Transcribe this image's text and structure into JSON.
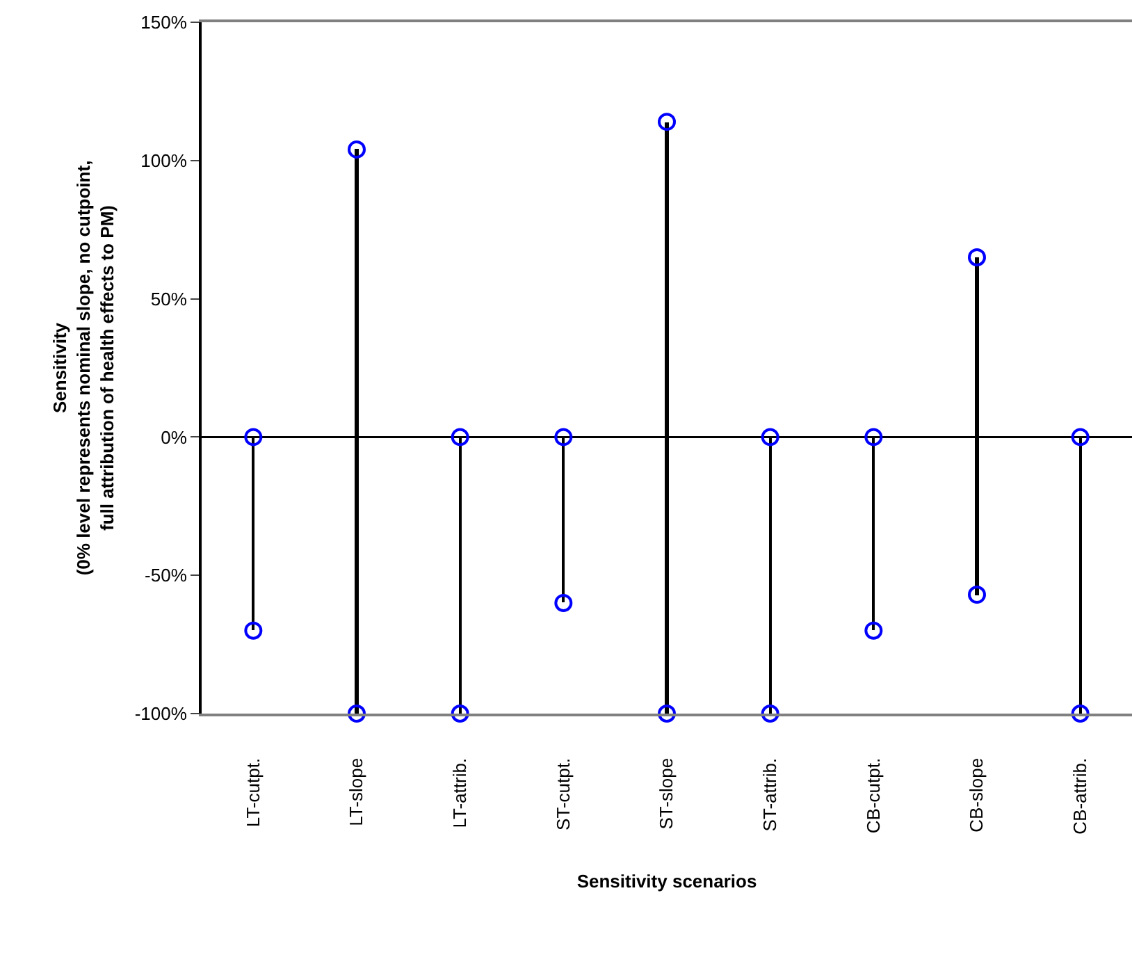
{
  "chart_data": {
    "type": "bar",
    "categories": [
      "LT-cutpt.",
      "LT-slope",
      "LT-attrib.",
      "ST-cutpt.",
      "ST-slope",
      "ST-attrib.",
      "CB-cutpt.",
      "CB-slope",
      "CB-attrib."
    ],
    "xlabel": "Sensitivity scenarios",
    "ylabel": "Sensitivity\n(0% level represents nominal slope, no cutpoint,\nfull attribution of health effects to PM)",
    "series": [
      {
        "color": "#000000",
        "base": [
          -70,
          -100,
          -100,
          -60,
          -100,
          -100,
          -70,
          -57,
          -100
        ],
        "values": [
          70,
          204,
          100,
          60,
          214,
          100,
          70,
          122,
          100
        ]
      },
      {
        "type": "scatter",
        "color": "#0000ff",
        "marker": "circle",
        "values": [
          0,
          104,
          0,
          0,
          114,
          0,
          0,
          65,
          0
        ]
      },
      {
        "type": "scatter",
        "color": "#0000ff",
        "marker": "circle",
        "values": [
          -70,
          -100,
          -100,
          -60,
          -100,
          -100,
          -70,
          -57,
          -100
        ]
      }
    ],
    "ylim": [
      -100,
      150
    ],
    "yticks": [
      {
        "value": -100,
        "label": "-100%"
      },
      {
        "value": -50,
        "label": "-50%"
      },
      {
        "value": 0,
        "label": "0%"
      },
      {
        "value": 50,
        "label": "50%"
      },
      {
        "value": 100,
        "label": "100%"
      },
      {
        "value": 150,
        "label": "150%"
      }
    ],
    "ref_lines": [
      {
        "axis": "y",
        "value": 0,
        "color": "#000000"
      }
    ],
    "grid": false
  }
}
